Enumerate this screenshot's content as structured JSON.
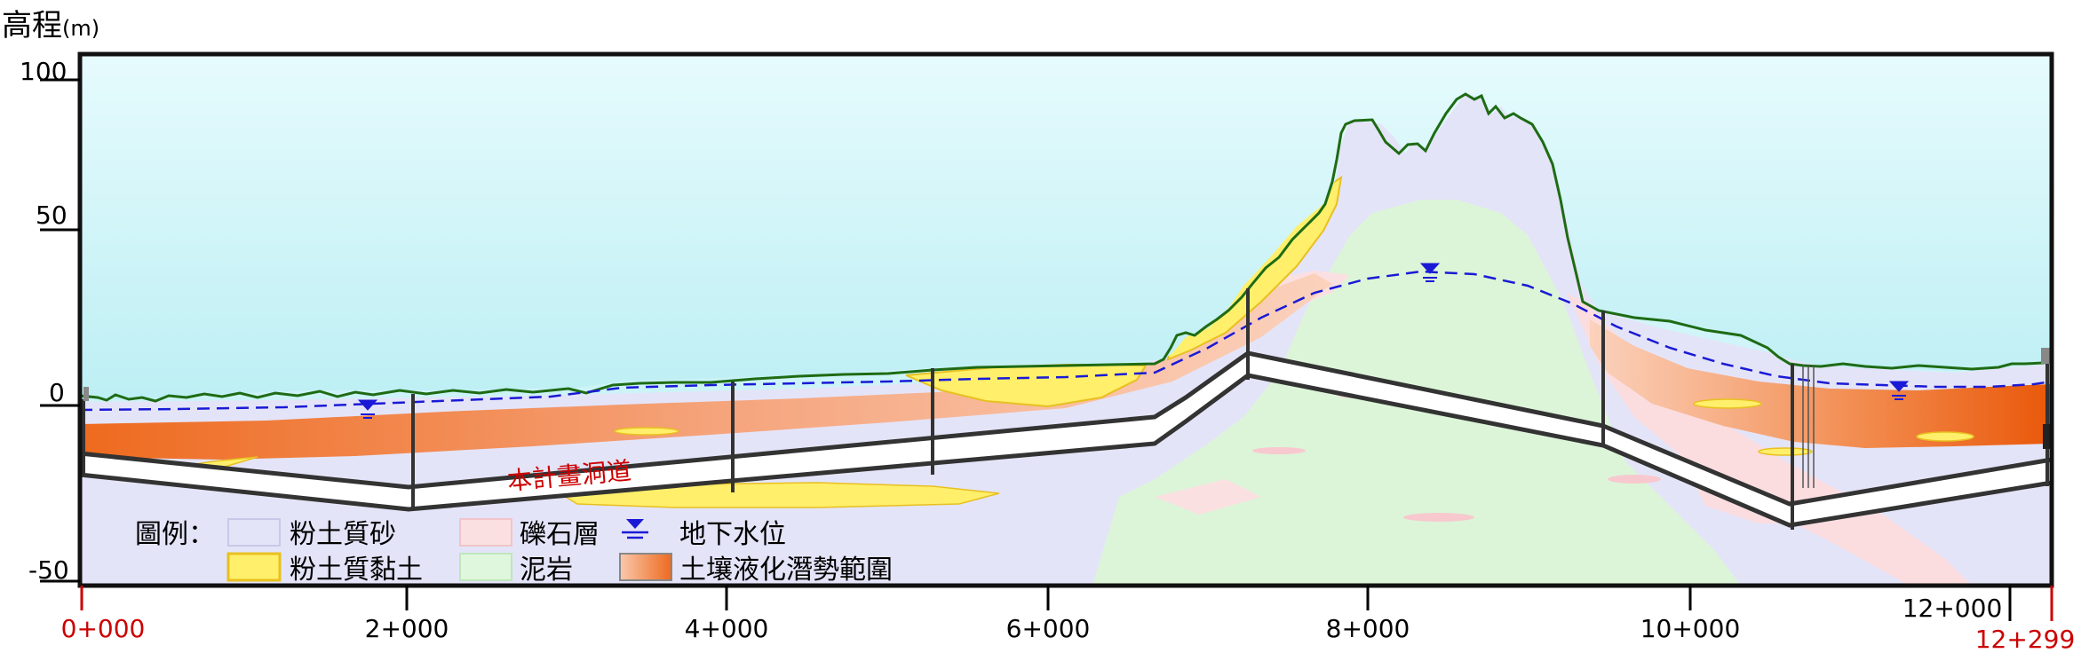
{
  "y_axis": {
    "title": "高程",
    "unit": "(m)",
    "ticks": [
      {
        "value": 100,
        "label": "100"
      },
      {
        "value": 50,
        "label": "50"
      },
      {
        "value": 0,
        "label": "0"
      },
      {
        "value": -50,
        "label": "-50"
      }
    ]
  },
  "x_axis": {
    "ticks": [
      {
        "label": "0+000",
        "color": "#cc0000"
      },
      {
        "label": "2+000",
        "color": "#000000"
      },
      {
        "label": "4+000",
        "color": "#000000"
      },
      {
        "label": "6+000",
        "color": "#000000"
      },
      {
        "label": "8+000",
        "color": "#000000"
      },
      {
        "label": "10+000",
        "color": "#000000"
      },
      {
        "label": "12+000",
        "color": "#000000"
      },
      {
        "label": "12+299",
        "color": "#cc0000"
      }
    ]
  },
  "tunnel_label": "本計畫洞道",
  "legend": {
    "title": "圖例：",
    "items": [
      {
        "label": "粉土質砂",
        "color": "#e4e4f8"
      },
      {
        "label": "礫石層",
        "color": "#fbe0e2"
      },
      {
        "label": "地下水位",
        "color": "#1a1ad6"
      },
      {
        "label": "粉土質黏土",
        "color": "#ffee66"
      },
      {
        "label": "泥岩",
        "color": "#dff7dc"
      },
      {
        "label": "土壤液化潛勢範圍",
        "color": "#ee6a1e"
      }
    ]
  },
  "colors": {
    "sky_top": "#e6fbfd",
    "sky_bottom": "#bff0f5",
    "ground_line": "#1e6b14",
    "water_line": "#1a1ad6",
    "tunnel": "#333333",
    "frame": "#111111"
  }
}
